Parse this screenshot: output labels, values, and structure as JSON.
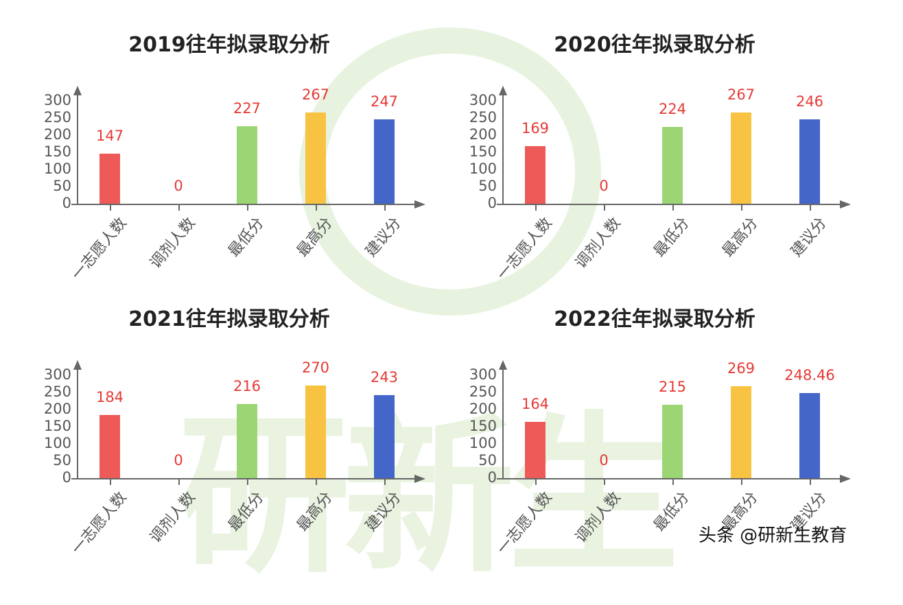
{
  "watermark": {
    "text": "研新生"
  },
  "footer": {
    "text": "头条 @研新生教育"
  },
  "colors": {
    "red": "#ee5a57",
    "green": "#9bd574",
    "yellow": "#f8c342",
    "blue": "#4466c8",
    "label": "#e53935"
  },
  "chart_data": [
    {
      "type": "bar",
      "title": "2019往年拟录取分析",
      "categories": [
        "一志愿人数",
        "调剂人数",
        "最低分",
        "最高分",
        "建议分"
      ],
      "values": [
        147,
        0,
        227,
        267,
        247
      ],
      "value_labels": [
        "147",
        "0",
        "227",
        "267",
        "247"
      ],
      "yticks": [
        "0",
        "50",
        "100",
        "150",
        "200",
        "250",
        "300"
      ],
      "ylim": [
        0,
        300
      ],
      "xlabel": "",
      "ylabel": ""
    },
    {
      "type": "bar",
      "title": "2020往年拟录取分析",
      "categories": [
        "一志愿人数",
        "调剂人数",
        "最低分",
        "最高分",
        "建议分"
      ],
      "values": [
        169,
        0,
        224,
        267,
        246
      ],
      "value_labels": [
        "169",
        "0",
        "224",
        "267",
        "246"
      ],
      "yticks": [
        "0",
        "50",
        "100",
        "150",
        "200",
        "250",
        "300"
      ],
      "ylim": [
        0,
        300
      ],
      "xlabel": "",
      "ylabel": ""
    },
    {
      "type": "bar",
      "title": "2021往年拟录取分析",
      "categories": [
        "一志愿人数",
        "调剂人数",
        "最低分",
        "最高分",
        "建议分"
      ],
      "values": [
        184,
        0,
        216,
        270,
        243
      ],
      "value_labels": [
        "184",
        "0",
        "216",
        "270",
        "243"
      ],
      "yticks": [
        "0",
        "50",
        "100",
        "150",
        "200",
        "250",
        "300"
      ],
      "ylim": [
        0,
        300
      ],
      "xlabel": "",
      "ylabel": ""
    },
    {
      "type": "bar",
      "title": "2022往年拟录取分析",
      "categories": [
        "一志愿人数",
        "调剂人数",
        "最低分",
        "最高分",
        "建议分"
      ],
      "values": [
        164,
        0,
        215,
        269,
        248.46
      ],
      "value_labels": [
        "164",
        "0",
        "215",
        "269",
        "248.46"
      ],
      "yticks": [
        "0",
        "50",
        "100",
        "150",
        "200",
        "250",
        "300"
      ],
      "ylim": [
        0,
        300
      ],
      "xlabel": "",
      "ylabel": ""
    }
  ]
}
